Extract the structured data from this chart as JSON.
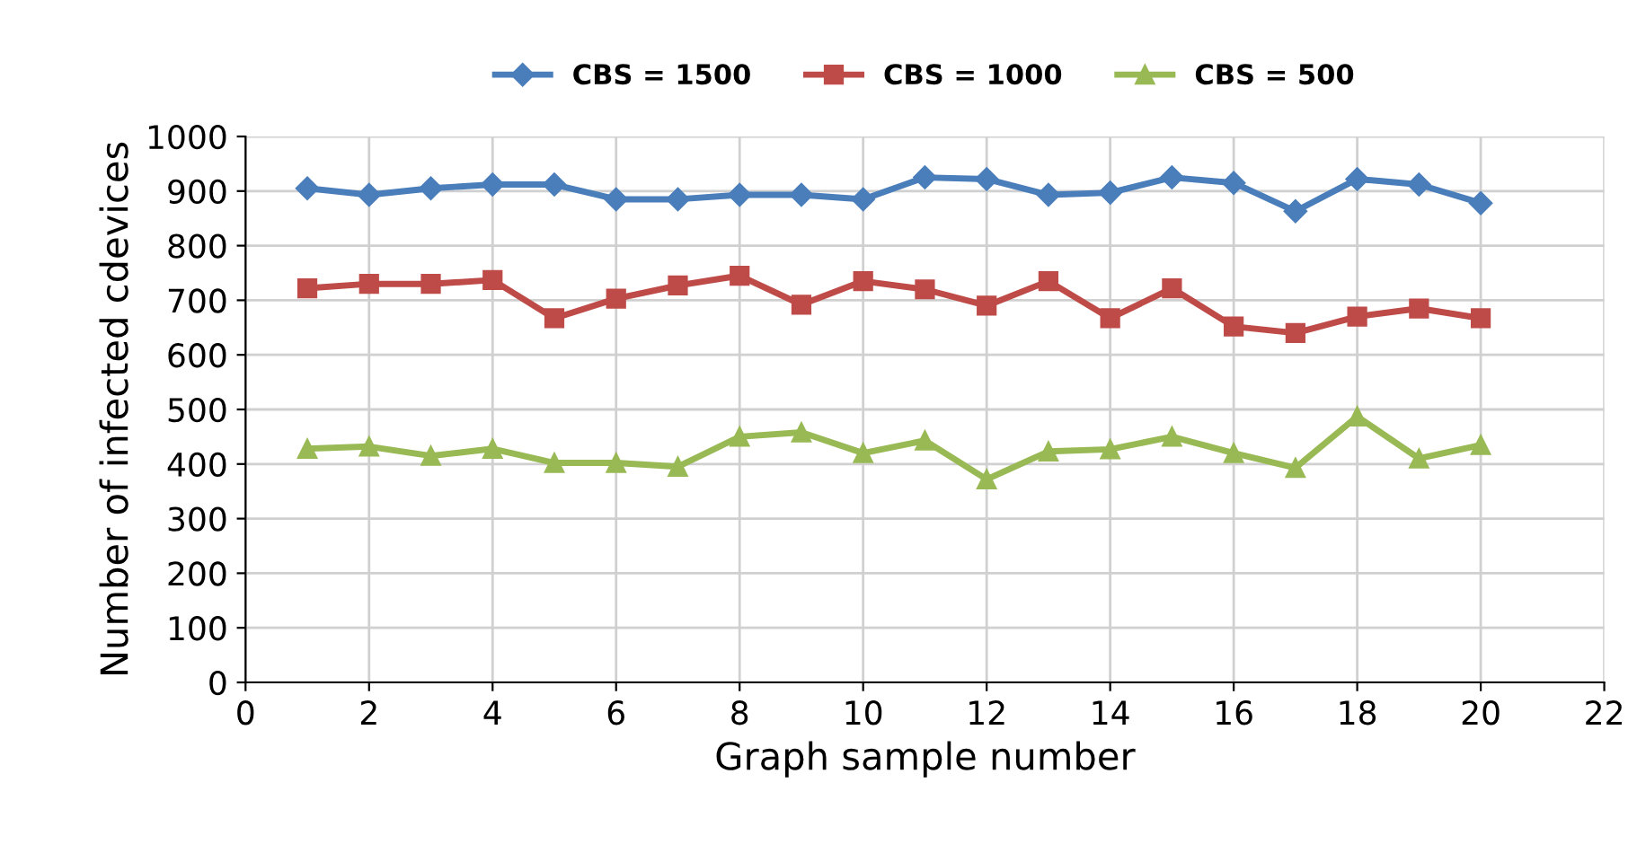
{
  "chart_data": {
    "type": "line",
    "xlabel": "Graph sample number",
    "ylabel": "Number of infected cdevices",
    "x": [
      1,
      2,
      3,
      4,
      5,
      6,
      7,
      8,
      9,
      10,
      11,
      12,
      13,
      14,
      15,
      16,
      17,
      18,
      19,
      20
    ],
    "series": [
      {
        "name": "CBS = 1500",
        "color": "#4a7ebb",
        "marker": "diamond",
        "values": [
          905,
          893,
          905,
          912,
          912,
          885,
          885,
          893,
          893,
          885,
          925,
          922,
          893,
          897,
          925,
          915,
          863,
          922,
          912,
          878
        ]
      },
      {
        "name": "CBS = 1000",
        "color": "#be4b48",
        "marker": "square",
        "values": [
          722,
          730,
          730,
          737,
          667,
          703,
          727,
          745,
          692,
          735,
          720,
          690,
          735,
          667,
          722,
          652,
          640,
          670,
          685,
          667
        ]
      },
      {
        "name": "CBS = 500",
        "color": "#98b954",
        "marker": "triangle",
        "values": [
          428,
          432,
          415,
          428,
          402,
          402,
          395,
          450,
          458,
          420,
          443,
          372,
          423,
          427,
          450,
          420,
          393,
          487,
          410,
          435
        ]
      }
    ],
    "xlim": [
      0,
      22
    ],
    "xticks": [
      0,
      2,
      4,
      6,
      8,
      10,
      12,
      14,
      16,
      18,
      20,
      22
    ],
    "ylim": [
      0,
      1000
    ],
    "yticks": [
      0,
      100,
      200,
      300,
      400,
      500,
      600,
      700,
      800,
      900,
      1000
    ],
    "grid": true,
    "legend": "top",
    "line_style": "solid"
  }
}
